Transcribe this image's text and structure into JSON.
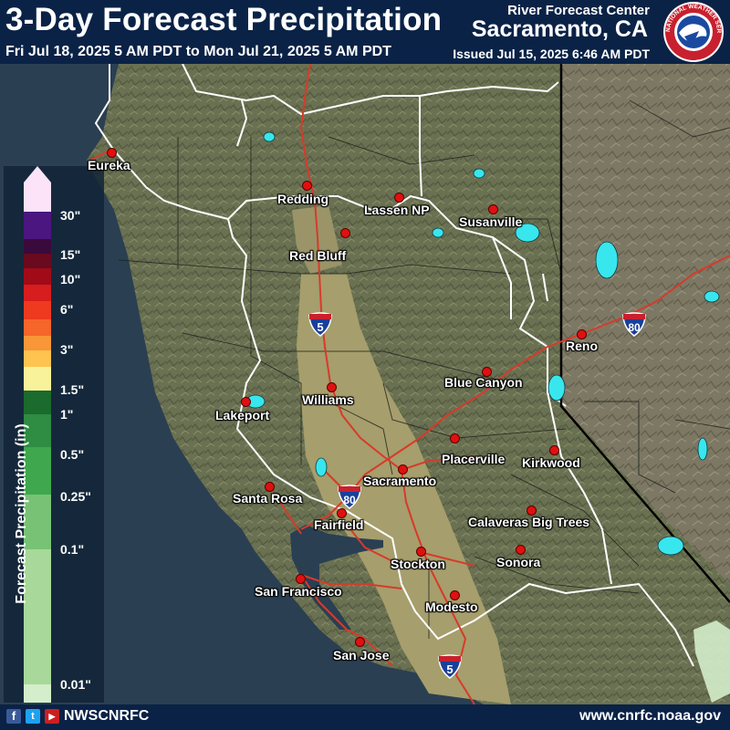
{
  "header": {
    "title": "3-Day Forecast Precipitation",
    "period": "Fri Jul 18, 2025 5 AM PDT to Mon Jul 21, 2025 5 AM PDT",
    "center_label": "River Forecast Center",
    "center_city": "Sacramento, CA",
    "issued": "Issued Jul 15, 2025 6:46 AM PDT",
    "logo_text": "NATIONAL WEATHER SERVICE"
  },
  "legend": {
    "title": "Forecast Precipitation (in)",
    "ticks": [
      "30\"",
      "15\"",
      "10\"",
      "6\"",
      "3\"",
      "1.5\"",
      "1\"",
      "0.5\"",
      "0.25\"",
      "0.1\"",
      "0.01\""
    ],
    "colors": [
      "#fde3f8",
      "#4b1680",
      "#3a0a3c",
      "#6a0a1e",
      "#a00b17",
      "#d71d1d",
      "#ee3a1f",
      "#f6652a",
      "#f99637",
      "#ffc34f",
      "#f8f39a",
      "#1b6a2e",
      "#2e8c43",
      "#3fa74e",
      "#78c275",
      "#a8d89a",
      "#d4edca"
    ]
  },
  "cities": [
    {
      "name": "Eureka"
    },
    {
      "name": "Redding"
    },
    {
      "name": "Lassen NP"
    },
    {
      "name": "Susanville"
    },
    {
      "name": "Red Bluff"
    },
    {
      "name": "Reno"
    },
    {
      "name": "Blue Canyon"
    },
    {
      "name": "Williams"
    },
    {
      "name": "Lakeport"
    },
    {
      "name": "Placerville"
    },
    {
      "name": "Kirkwood"
    },
    {
      "name": "Sacramento"
    },
    {
      "name": "Santa Rosa"
    },
    {
      "name": "Fairfield"
    },
    {
      "name": "Calaveras Big Trees"
    },
    {
      "name": "Sonora"
    },
    {
      "name": "Stockton"
    },
    {
      "name": "San Francisco"
    },
    {
      "name": "Modesto"
    },
    {
      "name": "San Jose"
    }
  ],
  "highways": {
    "i5": "5",
    "i80": "80"
  },
  "footer": {
    "facebook": "f",
    "twitter": "t",
    "youtube": "▶",
    "handle": "NWSCNRFC",
    "url": "www.cnrfc.noaa.gov"
  },
  "colors": {
    "header_bg": "#0a2246",
    "terrain": "#6f7454",
    "valley": "#a59d6e",
    "ocean": "#2a3f52",
    "lakes": "#38e6ee",
    "roads": "#d83a2a",
    "city_dot": "#e01010"
  }
}
